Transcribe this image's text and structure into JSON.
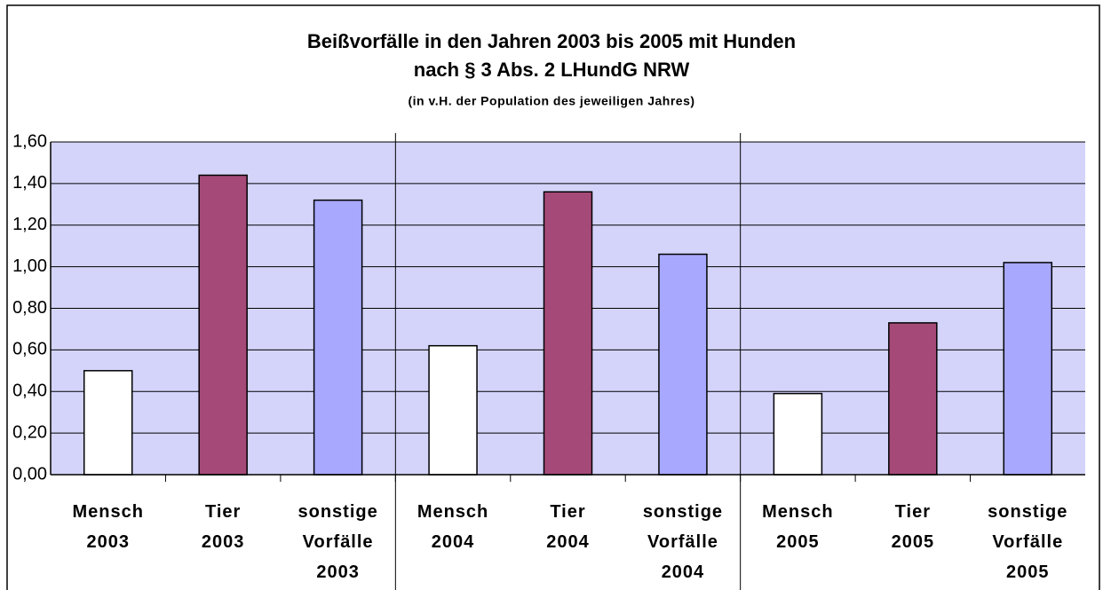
{
  "chart_data": {
    "type": "bar",
    "title": "Beißvorfälle in den Jahren 2003 bis 2005 mit Hunden",
    "title_line2": "nach § 3 Abs. 2  LHundG NRW",
    "subtitle": "(in v.H. der Population des jeweiligen Jahres)",
    "categories": [
      "Mensch\n2003",
      "Tier\n2003",
      "sonstige\nVorfälle\n2003",
      "Mensch\n2004",
      "Tier\n2004",
      "sonstige\nVorfälle\n2004",
      "Mensch\n2005",
      "Tier\n2005",
      "sonstige\nVorfälle\n2005"
    ],
    "values": [
      0.5,
      1.44,
      1.32,
      0.62,
      1.36,
      1.06,
      0.39,
      0.73,
      1.02
    ],
    "colors": [
      "#ffffff",
      "#a54a78",
      "#a8a8ff",
      "#ffffff",
      "#a54a78",
      "#a8a8ff",
      "#ffffff",
      "#a54a78",
      "#a8a8ff"
    ],
    "plot_background": "#d4d4fb",
    "ylim": [
      0,
      1.6
    ],
    "yticks": [
      {
        "value": 0,
        "label": "0,00"
      },
      {
        "value": 0.2,
        "label": "0,20"
      },
      {
        "value": 0.4,
        "label": "0,40"
      },
      {
        "value": 0.6,
        "label": "0,60"
      },
      {
        "value": 0.8,
        "label": "0,80"
      },
      {
        "value": 1.0,
        "label": "1,00"
      },
      {
        "value": 1.2,
        "label": "1,20"
      },
      {
        "value": 1.4,
        "label": "1,40"
      },
      {
        "value": 1.6,
        "label": "1,60"
      }
    ],
    "grid": true
  }
}
